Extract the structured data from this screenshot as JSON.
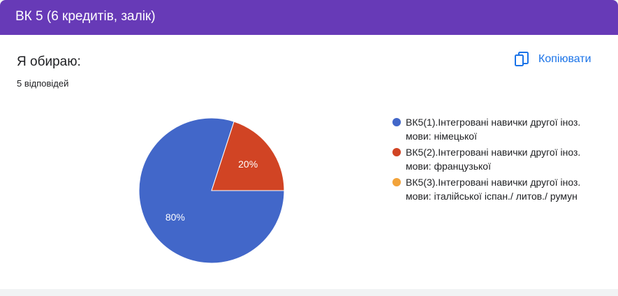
{
  "header": {
    "title": "ВК 5 (6 кредитів, залік)"
  },
  "question": {
    "title": "Я обираю:",
    "response_count": "5 відповідей"
  },
  "toolbar": {
    "copy_label": "Копіювати",
    "copy_icon": "copy-icon"
  },
  "colors": {
    "header": "#673ab7",
    "accent": "#1a73e8"
  },
  "chart_data": {
    "type": "pie",
    "title": "",
    "legend_position": "right",
    "slices": [
      {
        "label": "ВК5(1).Інтегровані навички другої іноз. мови: німецької",
        "value": 80,
        "display": "80%",
        "color": "#4267c9"
      },
      {
        "label": "ВК5(2).Інтегровані навички другої іноз. мови: французької",
        "value": 20,
        "display": "20%",
        "color": "#d14424"
      },
      {
        "label": "ВК5(3).Інтегровані навички другої іноз. мови: італійської іспан./ литов./ румун",
        "value": 0,
        "display": "",
        "color": "#f2a33a"
      }
    ]
  }
}
